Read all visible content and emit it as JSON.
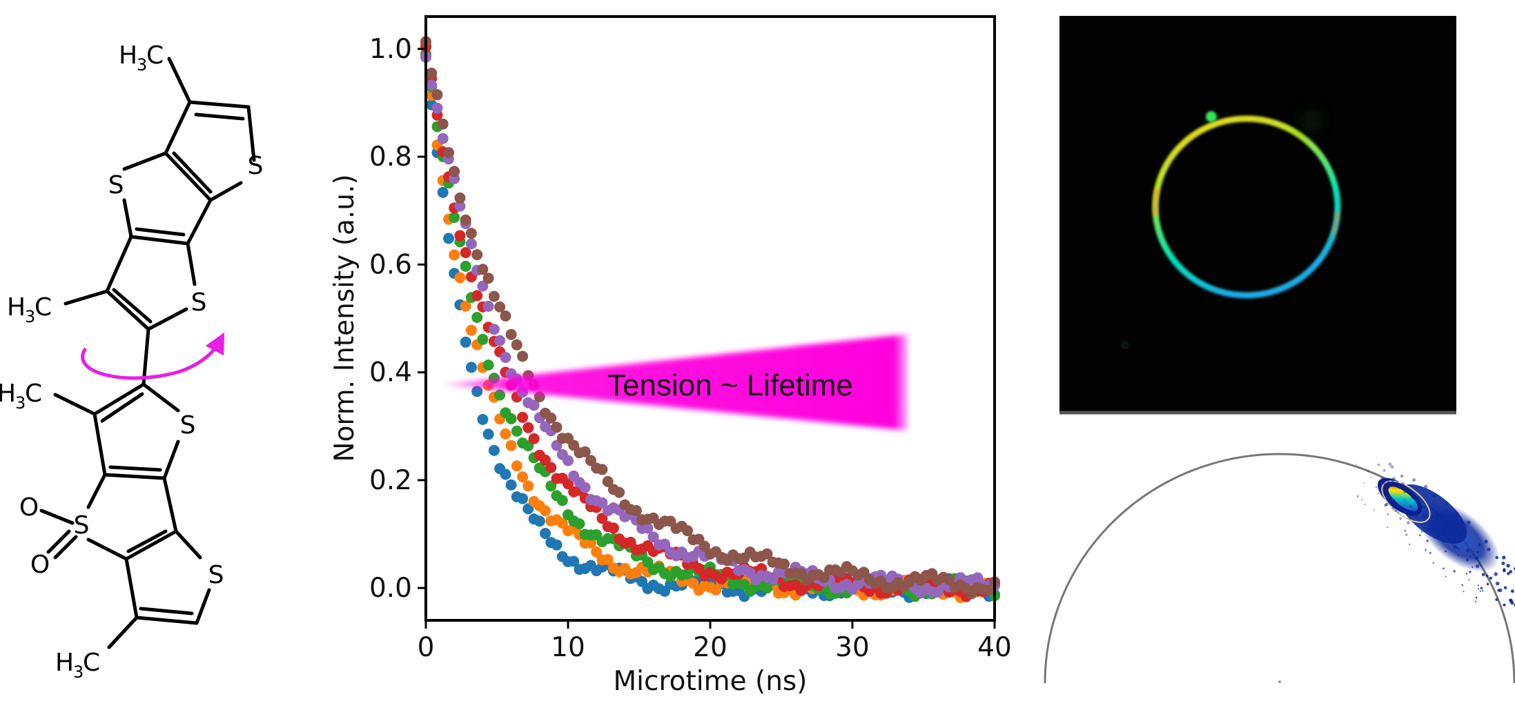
{
  "molecule": {
    "atoms": {
      "sulfur": "S",
      "oxygen": "O",
      "methyl_h": "H",
      "methyl_sub": "3",
      "methyl_c": "C"
    },
    "rotation_arrow_color": "#e61ee6"
  },
  "chart_data": {
    "type": "scatter",
    "title": "",
    "xlabel": "Microtime (ns)",
    "ylabel": "Norm. Intensity (a.u.)",
    "xlim": [
      0,
      40
    ],
    "ylim": [
      -0.06,
      1.06
    ],
    "xticks": [
      0,
      10,
      20,
      30,
      40
    ],
    "xtick_labels": [
      "0",
      "10",
      "20",
      "30",
      "40"
    ],
    "yticks": [
      0.0,
      0.2,
      0.4,
      0.6,
      0.8,
      1.0
    ],
    "ytick_labels": [
      "0.0",
      "0.2",
      "0.4",
      "0.6",
      "0.8",
      "1.0"
    ],
    "grid": false,
    "legend": "none",
    "x_sampling": {
      "start": 0,
      "step": 0.4,
      "end": 40
    },
    "series": [
      {
        "color": "#1f77b4",
        "decay_model": "single-exponential",
        "lifetime_ns": 3.6
      },
      {
        "color": "#ff7f0e",
        "decay_model": "single-exponential",
        "lifetime_ns": 4.4
      },
      {
        "color": "#2ca02c",
        "decay_model": "single-exponential",
        "lifetime_ns": 5.2
      },
      {
        "color": "#d62728",
        "decay_model": "single-exponential",
        "lifetime_ns": 6.0
      },
      {
        "color": "#9467bd",
        "decay_model": "single-exponential",
        "lifetime_ns": 6.8
      },
      {
        "color": "#8c564b",
        "decay_model": "single-exponential",
        "lifetime_ns": 7.8
      }
    ],
    "annotation": {
      "text": "Tension ~ Lifetime",
      "color": "#ff00dd"
    }
  },
  "fluorescence_image": {
    "background": "#020202",
    "ring_colors": [
      "#ffd21e",
      "#b4e628",
      "#00e6b4",
      "#1eaae6"
    ]
  },
  "phasor_plot": {
    "semicircle_color": "#777777",
    "cloud_colors": [
      "#0b1e8c",
      "#1e50c8",
      "#00c8c8",
      "#ffe600",
      "#ff3200"
    ]
  }
}
